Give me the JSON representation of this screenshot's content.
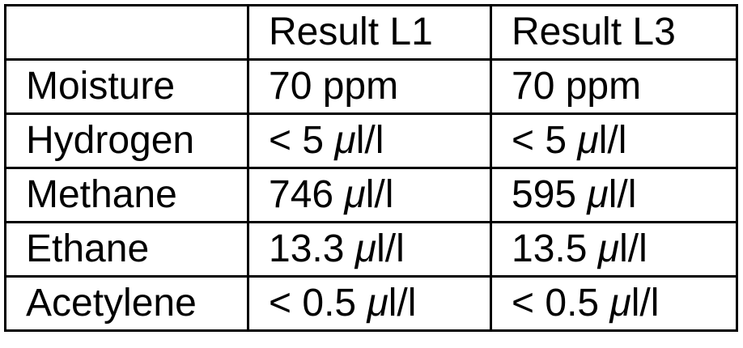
{
  "table": {
    "header": [
      "Result L1",
      "Result L3"
    ],
    "rows": [
      [
        "Moisture",
        "70 ppm",
        "70 ppm"
      ],
      [
        "Hydrogen",
        "< 5 μl/l",
        "< 5 μl/l"
      ],
      [
        "Methane",
        "746 μl/l",
        "595 μl/l"
      ],
      [
        "Ethane",
        "13.3 μl/l",
        "13.5 μl/l"
      ],
      [
        "Acetylene",
        "< 0.5 μl/l",
        "< 0.5 μl/l"
      ]
    ]
  }
}
